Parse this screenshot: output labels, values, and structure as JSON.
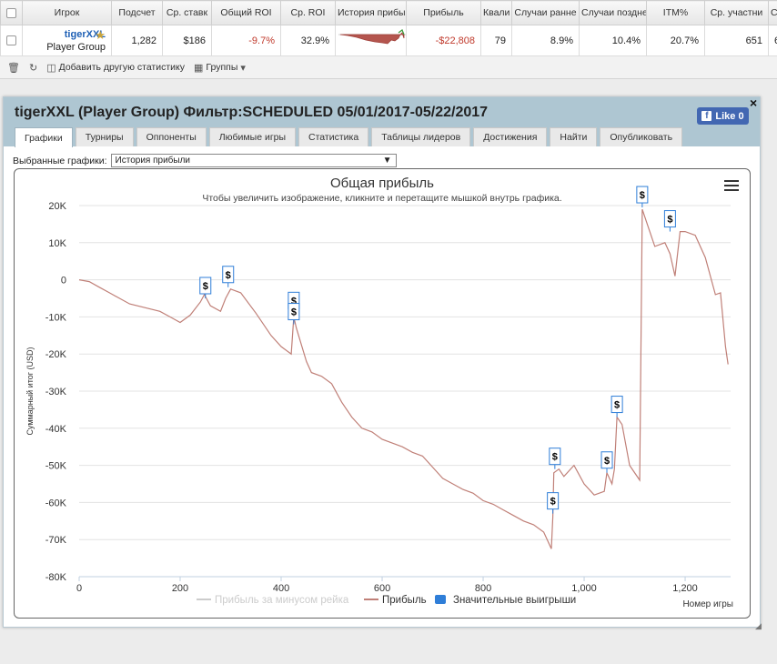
{
  "stats_table": {
    "headers": [
      "Игрок",
      "Подсчет",
      "Ср. ставк",
      "Общий ROI",
      "Ср. ROI",
      "История прибы",
      "Прибыль",
      "Квали",
      "Случаи ранне",
      "Случаи поздне",
      "ITM%",
      "Ср. участни",
      "С"
    ],
    "row": {
      "player_name": "tigerXXL",
      "player_group": "Player Group",
      "count": "1,282",
      "avg_stake": "$186",
      "total_roi": "-9.7%",
      "avg_roi": "32.9%",
      "profit": "-$22,808",
      "qual": "79",
      "early": "8.9%",
      "late": "10.4%",
      "itm": "20.7%",
      "avg_entrants": "651",
      "last": "6"
    }
  },
  "toolbar": {
    "add_stat": "Добавить другую статистику",
    "groups": "Группы"
  },
  "panel": {
    "title": "tigerXXL (Player Group) Фильтр:SCHEDULED 05/01/2017-05/22/2017",
    "like_label": "Like 0",
    "close_symbol": "×",
    "tabs": [
      "Графики",
      "Турниры",
      "Оппоненты",
      "Любимые игры",
      "Статистика",
      "Таблицы лидеров",
      "Достижения",
      "Найти",
      "Опубликовать"
    ],
    "selector_label": "Выбранные графики:",
    "selector_value": "История прибыли"
  },
  "chart_data": {
    "type": "line",
    "title": "Общая прибыль",
    "subtitle": "Чтобы увеличить изображение, кликните и перетащите мышкой внутрь графика.",
    "xlabel": "Номер игры",
    "ylabel": "Суммарный итог (USD)",
    "xlim": [
      0,
      1290
    ],
    "ylim": [
      -80000,
      20000
    ],
    "x_ticks": [
      0,
      200,
      400,
      600,
      800,
      1000,
      1200
    ],
    "x_tick_labels": [
      "0",
      "200",
      "400",
      "600",
      "800",
      "1,000",
      "1,200"
    ],
    "y_ticks": [
      20000,
      10000,
      0,
      -10000,
      -20000,
      -30000,
      -40000,
      -50000,
      -60000,
      -70000,
      -80000
    ],
    "y_tick_labels": [
      "20K",
      "10K",
      "0",
      "-10K",
      "-20K",
      "-30K",
      "-40K",
      "-50K",
      "-60K",
      "-70K",
      "-80K"
    ],
    "legend_position": "bottom",
    "legend": [
      {
        "name": "Прибыль за минусом рейка",
        "color": "#cccccc"
      },
      {
        "name": "Прибыль",
        "color": "#c08078"
      },
      {
        "name": "Значительные выигрыши",
        "color": "#2f7ed8"
      }
    ],
    "series": [
      {
        "name": "Прибыль",
        "color": "#c08078",
        "x": [
          0,
          20,
          40,
          60,
          80,
          100,
          130,
          160,
          180,
          200,
          220,
          240,
          248,
          260,
          280,
          290,
          300,
          320,
          350,
          380,
          400,
          420,
          425,
          430,
          450,
          460,
          480,
          500,
          520,
          540,
          560,
          580,
          600,
          620,
          640,
          660,
          680,
          700,
          720,
          740,
          760,
          780,
          800,
          820,
          840,
          860,
          880,
          900,
          920,
          935,
          938,
          940,
          950,
          960,
          980,
          1000,
          1020,
          1040,
          1045,
          1055,
          1060,
          1065,
          1075,
          1090,
          1110,
          1115,
          1125,
          1140,
          1160,
          1170,
          1180,
          1190,
          1200,
          1220,
          1240,
          1260,
          1270,
          1280,
          1285
        ],
        "y": [
          0,
          -500,
          -2000,
          -3500,
          -5000,
          -6500,
          -7500,
          -8500,
          -10000,
          -11500,
          -9500,
          -6000,
          -4000,
          -7000,
          -8500,
          -5000,
          -2500,
          -3500,
          -9000,
          -15000,
          -18000,
          -20000,
          -10000,
          -13000,
          -22000,
          -25000,
          -26000,
          -28000,
          -33000,
          -37000,
          -40000,
          -41000,
          -43000,
          -44000,
          -45000,
          -46500,
          -47500,
          -50500,
          -53500,
          -55000,
          -56500,
          -57500,
          -59500,
          -60500,
          -62000,
          -63500,
          -65000,
          -66000,
          -68000,
          -72500,
          -64000,
          -52000,
          -51000,
          -53000,
          -50000,
          -55000,
          -58000,
          -57000,
          -52000,
          -55000,
          -51000,
          -37000,
          -39000,
          -50000,
          -54000,
          19000,
          15000,
          9000,
          10000,
          7000,
          1000,
          13000,
          13000,
          12000,
          6000,
          -4000,
          -3500,
          -18000,
          -22800
        ]
      }
    ],
    "significant_wins": [
      {
        "x": 250,
        "y": -5000
      },
      {
        "x": 295,
        "y": -2000
      },
      {
        "x": 425,
        "y": -9000
      },
      {
        "x": 425,
        "y": -12000
      },
      {
        "x": 938,
        "y": -63000
      },
      {
        "x": 942,
        "y": -51000
      },
      {
        "x": 1045,
        "y": -52000
      },
      {
        "x": 1065,
        "y": -37000
      },
      {
        "x": 1115,
        "y": 19500
      },
      {
        "x": 1170,
        "y": 13000
      }
    ],
    "win_marker_symbol": "$"
  }
}
